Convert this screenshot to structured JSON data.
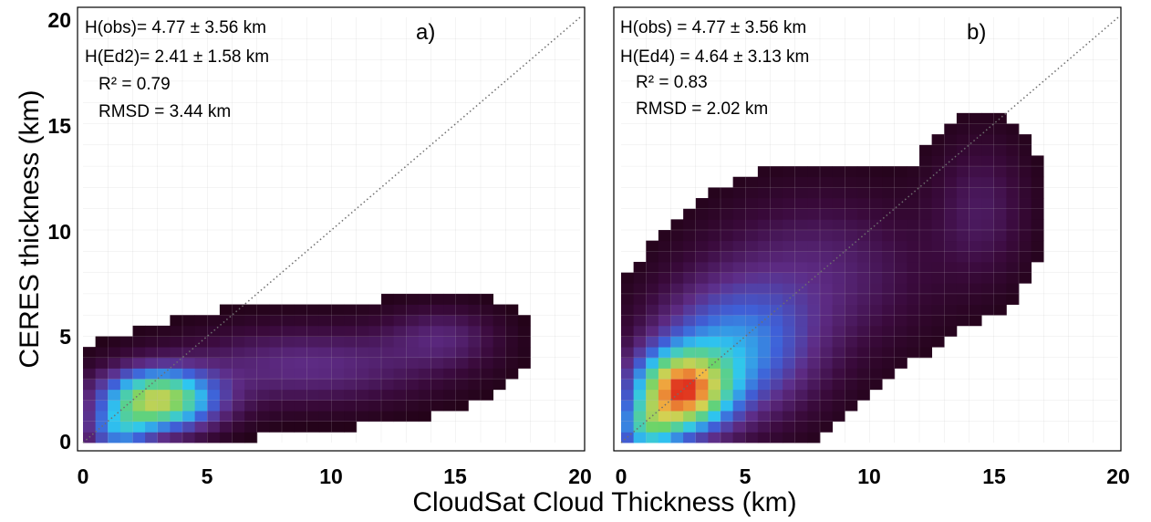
{
  "chart_data": [
    {
      "type": "heatmap",
      "panel_label": "a)",
      "xlim": [
        0,
        20
      ],
      "ylim": [
        0,
        20
      ],
      "x_ticks": [
        "0",
        "5",
        "10",
        "15",
        "20"
      ],
      "y_ticks": [
        "0",
        "5",
        "10",
        "15",
        "20"
      ],
      "grid": true,
      "one_to_one_line": true,
      "annotations": [
        "H(obs)= 4.77 ± 3.56 km",
        "H(Ed2)= 2.41 ± 1.58 km",
        "R² = 0.79",
        "RMSD = 3.44 km"
      ],
      "density_regions": [
        {
          "center_km": [
            3.0,
            2.0
          ],
          "sigma_km": [
            1.6,
            1.0
          ],
          "weight": 1.0
        },
        {
          "center_km": [
            1.4,
            0.5
          ],
          "sigma_km": [
            0.9,
            0.7
          ],
          "weight": 0.4
        },
        {
          "center_km": [
            9.0,
            3.6
          ],
          "sigma_km": [
            3.6,
            1.3
          ],
          "weight": 0.25
        },
        {
          "center_km": [
            14.5,
            5.0
          ],
          "sigma_km": [
            1.6,
            1.0
          ],
          "weight": 0.18
        }
      ],
      "peak_level": 0.8
    },
    {
      "type": "heatmap",
      "panel_label": "b)",
      "xlim": [
        0,
        20
      ],
      "ylim": [
        0,
        20
      ],
      "x_ticks": [
        "0",
        "5",
        "10",
        "15",
        "20"
      ],
      "y_ticks": [
        "0",
        "5",
        "10",
        "15",
        "20"
      ],
      "grid": true,
      "one_to_one_line": true,
      "annotations": [
        "H(obs) = 4.77 ± 3.56 km",
        "H(Ed4) = 4.64 ± 3.13 km",
        "R² = 0.83",
        "RMSD = 2.02 km"
      ],
      "density_regions": [
        {
          "center_km": [
            2.4,
            2.4
          ],
          "sigma_km": [
            1.3,
            1.3
          ],
          "weight": 1.0
        },
        {
          "center_km": [
            4.5,
            4.3
          ],
          "sigma_km": [
            2.2,
            2.2
          ],
          "weight": 0.45
        },
        {
          "center_km": [
            1.0,
            0.6
          ],
          "sigma_km": [
            0.9,
            0.9
          ],
          "weight": 0.45
        },
        {
          "center_km": [
            8.0,
            8.0
          ],
          "sigma_km": [
            3.0,
            2.6
          ],
          "weight": 0.18
        },
        {
          "center_km": [
            14.5,
            11.0
          ],
          "sigma_km": [
            1.4,
            2.4
          ],
          "weight": 0.14
        }
      ],
      "peak_level": 1.0
    }
  ],
  "labels": {
    "xlabel": "CloudSat Cloud Thickness (km)",
    "ylabel": "CERES thickness (km)"
  },
  "colors": {
    "colormap": [
      "#1a000a",
      "#3a0a3c",
      "#5e2c86",
      "#3f60d8",
      "#2ec6f0",
      "#69d46a",
      "#f4d04a",
      "#e0331e"
    ],
    "grid_line": "#bfbfbf",
    "frame": "#000000",
    "one_to_one_line": "#6e6e6e"
  }
}
